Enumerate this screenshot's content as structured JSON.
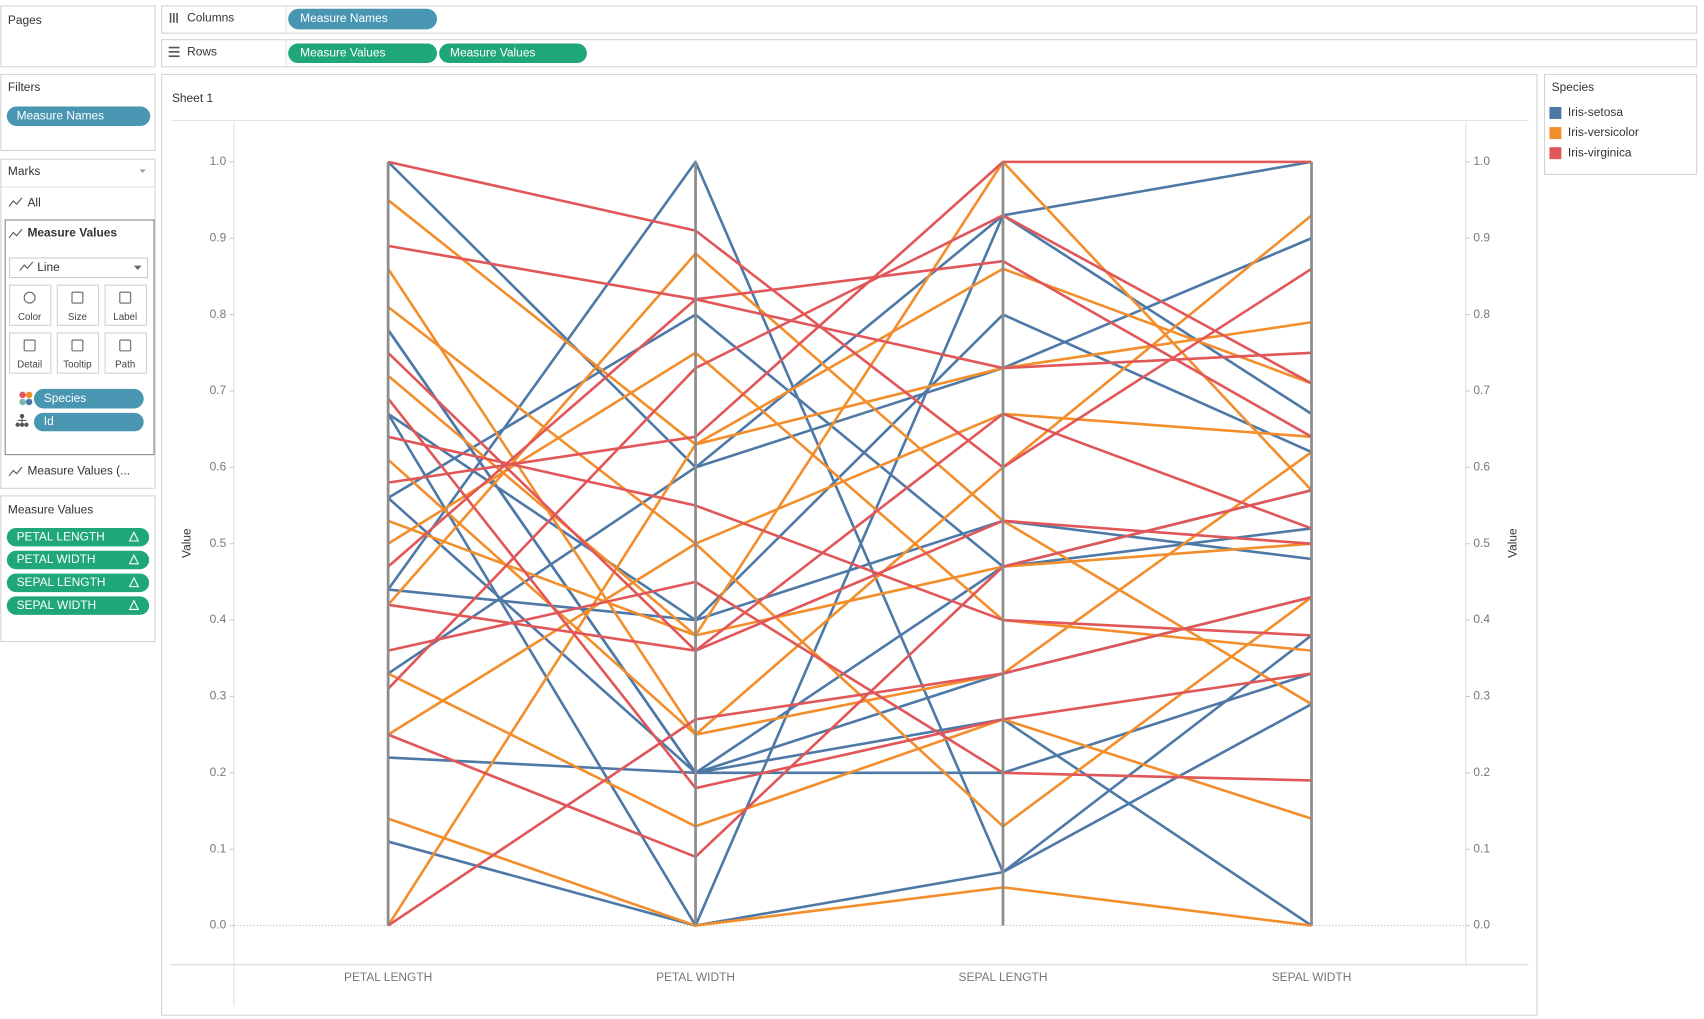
{
  "ui": {
    "pages": "Pages",
    "columns_label": "Columns",
    "columns_pills": [
      "Measure Names"
    ],
    "rows_label": "Rows",
    "rows_pills": [
      "Measure Values",
      "Measure Values"
    ],
    "filters": {
      "title": "Filters",
      "pills": [
        "Measure Names"
      ]
    },
    "marks": {
      "title": "Marks",
      "all": "All",
      "card": "Measure Values",
      "mark_type": "Line",
      "buttons": [
        "Color",
        "Size",
        "Label",
        "Detail",
        "Tooltip",
        "Path"
      ],
      "fields": [
        "Species",
        "Id"
      ],
      "card2": "Measure Values (..."
    },
    "measure_values": {
      "title": "Measure Values",
      "pills": [
        "PETAL LENGTH",
        "PETAL WIDTH",
        "SEPAL LENGTH",
        "SEPAL WIDTH"
      ]
    },
    "sheet_title": "Sheet 1"
  },
  "chart_data": {
    "type": "parallel",
    "categories": [
      "PETAL LENGTH",
      "PETAL WIDTH",
      "SEPAL LENGTH",
      "SEPAL WIDTH"
    ],
    "y_label": "Value",
    "y2_label": "Value",
    "ylim": [
      0,
      1
    ],
    "yticks": [
      {
        "value": 0,
        "label": "0.0"
      },
      0.1,
      0.2,
      0.3,
      0.4,
      0.5,
      0.6,
      0.7,
      0.8,
      0.9,
      {
        "value": 1,
        "label": "1.0"
      }
    ],
    "y2lim": [
      0,
      1
    ],
    "y2ticks": [
      {
        "value": 0,
        "label": "0.0"
      },
      0.1,
      0.2,
      0.3,
      0.4,
      0.5,
      0.6,
      0.7,
      0.8,
      0.9,
      {
        "value": 1,
        "label": "1.0"
      }
    ],
    "legend": {
      "title": "Species",
      "position": "right"
    },
    "series": [
      {
        "name": "Iris-setosa",
        "color": "#4e79a7",
        "values": [
          [
            1.0,
            0.6,
            0.93,
            1.0
          ],
          [
            0.78,
            0.2,
            0.47,
            0.52
          ],
          [
            0.67,
            0.4,
            0.53,
            0.48
          ],
          [
            0.56,
            0.2,
            0.2,
            0.33
          ],
          [
            0.44,
            1.0,
            0.07,
            0.29
          ],
          [
            0.33,
            0.6,
            0.73,
            0.9
          ],
          [
            0.22,
            0.2,
            0.33,
            0.43
          ],
          [
            0.11,
            0.0,
            0.07,
            0.38
          ],
          [
            0.67,
            0.0,
            0.93,
            0.67
          ],
          [
            0.56,
            0.8,
            0.47,
            0.57
          ],
          [
            0.44,
            0.4,
            0.8,
            0.62
          ],
          [
            0.78,
            0.2,
            0.27,
            0.0
          ]
        ]
      },
      {
        "name": "Iris-versicolor",
        "color": "#f28e2b",
        "values": [
          [
            0.95,
            0.63,
            0.86,
            0.71
          ],
          [
            0.81,
            0.5,
            0.67,
            0.64
          ],
          [
            0.72,
            0.38,
            0.47,
            0.5
          ],
          [
            0.61,
            0.25,
            0.6,
            0.93
          ],
          [
            0.5,
            0.75,
            0.4,
            0.36
          ],
          [
            0.42,
            0.88,
            0.53,
            0.29
          ],
          [
            0.33,
            0.13,
            0.27,
            0.14
          ],
          [
            0.14,
            0.0,
            0.05,
            0.0
          ],
          [
            0.0,
            0.63,
            0.73,
            0.79
          ],
          [
            0.53,
            0.38,
            1.0,
            0.57
          ],
          [
            0.25,
            0.5,
            0.13,
            0.43
          ],
          [
            0.86,
            0.25,
            0.33,
            0.62
          ]
        ]
      },
      {
        "name": "Iris-virginica",
        "color": "#e15759",
        "values": [
          [
            1.0,
            0.91,
            0.6,
            0.86
          ],
          [
            0.89,
            0.82,
            0.73,
            0.75
          ],
          [
            0.75,
            0.36,
            0.53,
            0.5
          ],
          [
            0.64,
            0.55,
            0.4,
            0.38
          ],
          [
            0.47,
            0.82,
            0.87,
            0.64
          ],
          [
            0.36,
            0.45,
            0.2,
            0.19
          ],
          [
            0.25,
            0.09,
            0.47,
            0.57
          ],
          [
            0.0,
            0.27,
            0.33,
            0.43
          ],
          [
            0.58,
            0.64,
            1.0,
            1.0
          ],
          [
            0.69,
            0.18,
            0.27,
            0.33
          ],
          [
            0.31,
            0.73,
            0.93,
            0.71
          ],
          [
            0.42,
            0.36,
            0.67,
            0.52
          ]
        ]
      }
    ]
  }
}
